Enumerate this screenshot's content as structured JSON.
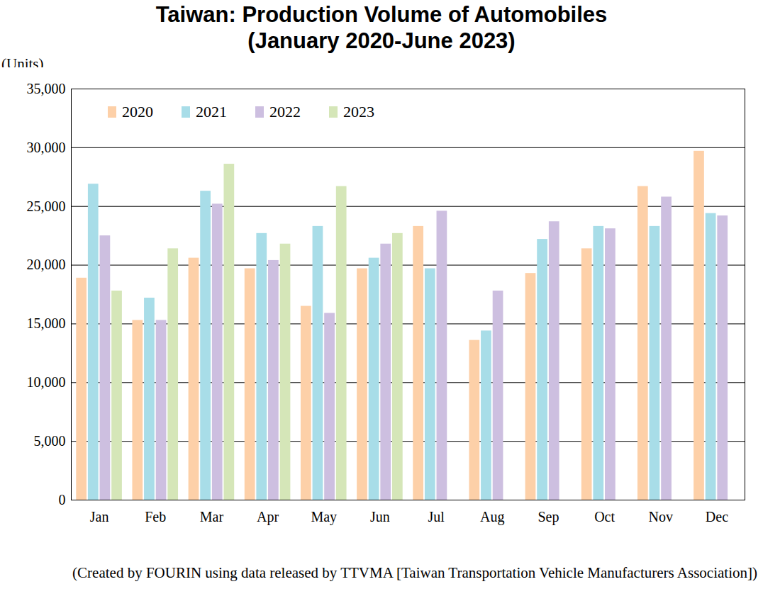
{
  "chart_data": {
    "type": "bar",
    "title": "Taiwan: Production Volume of Automobiles",
    "subtitle": "(January 2020-June 2023)",
    "y_label": "(Units)",
    "source": "(Created by FOURIN using data released by TTVMA [Taiwan Transportation Vehicle Manufacturers Association])",
    "categories": [
      "Jan",
      "Feb",
      "Mar",
      "Apr",
      "May",
      "Jun",
      "Jul",
      "Aug",
      "Sep",
      "Oct",
      "Nov",
      "Dec"
    ],
    "series": [
      {
        "name": "2020",
        "color": "#fdd0a8",
        "values": [
          18900,
          15300,
          20600,
          19700,
          16500,
          19700,
          23300,
          13600,
          19300,
          21400,
          26700,
          29700
        ]
      },
      {
        "name": "2021",
        "color": "#a8dde8",
        "values": [
          26900,
          17200,
          26300,
          22700,
          23300,
          20600,
          19700,
          14400,
          22200,
          23300,
          23300,
          24400
        ]
      },
      {
        "name": "2022",
        "color": "#cdbfe0",
        "values": [
          22500,
          15300,
          25200,
          20400,
          15900,
          21800,
          24600,
          17800,
          23700,
          23100,
          25800,
          24200
        ]
      },
      {
        "name": "2023",
        "color": "#d5e6b8",
        "values": [
          17800,
          21400,
          28600,
          21800,
          26700,
          22700,
          null,
          null,
          null,
          null,
          null,
          null
        ]
      }
    ],
    "ylim": [
      0,
      35000
    ],
    "yticks": [
      0,
      {
        "value": 5000,
        "label": "5,000"
      },
      {
        "value": 10000,
        "label": "10,000"
      },
      {
        "value": 15000,
        "label": "15,000"
      },
      {
        "value": 20000,
        "label": "20,000"
      },
      {
        "value": 25000,
        "label": "25,000"
      },
      {
        "value": 30000,
        "label": "30,000"
      },
      {
        "value": 35000,
        "label": "35,000"
      }
    ],
    "grid": true,
    "legend": "top-left"
  }
}
